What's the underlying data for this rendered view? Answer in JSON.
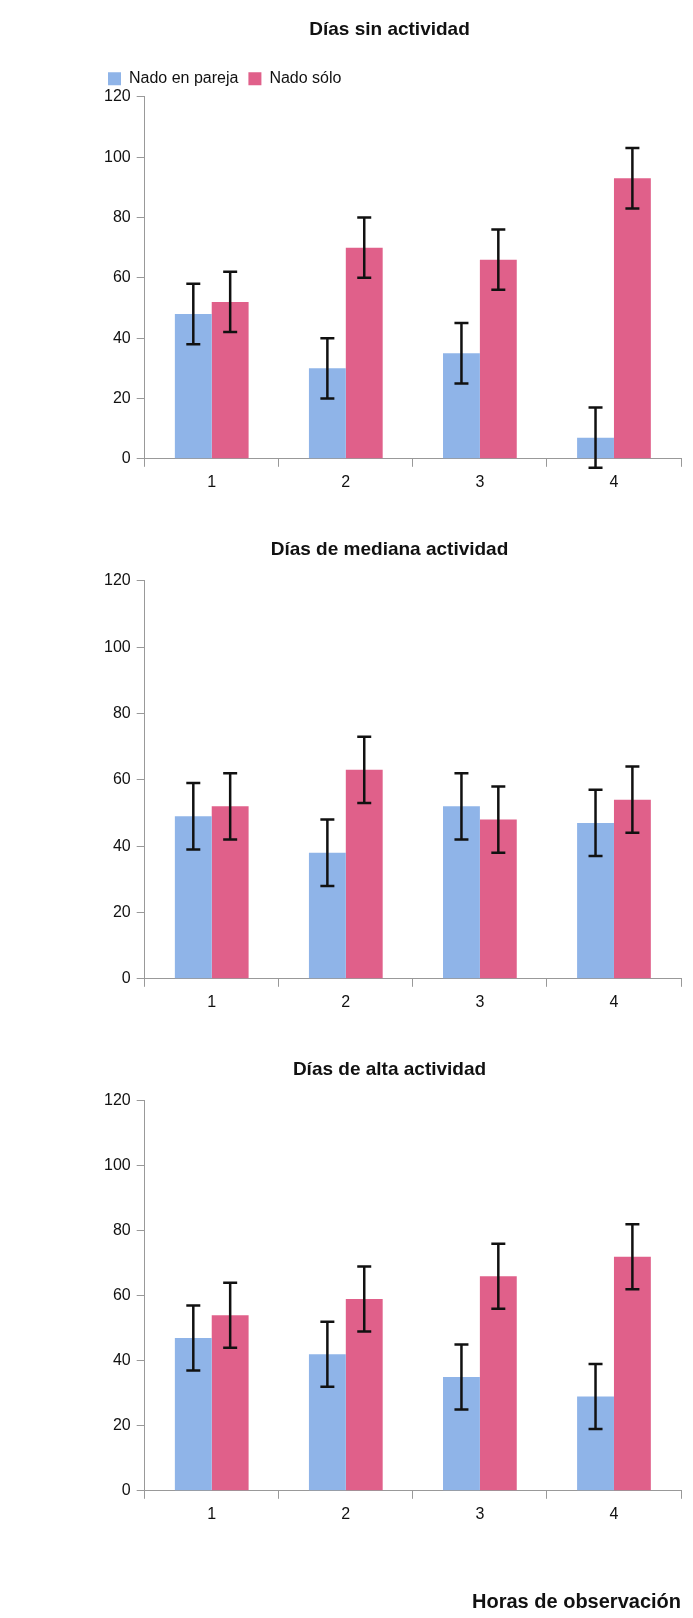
{
  "chart_data": [
    {
      "type": "bar",
      "title": "Días sin actividad",
      "categories": [
        "1",
        "2",
        "3",
        "4"
      ],
      "series": [
        {
          "name": "Nado en pareja",
          "color": "#8fb4e8",
          "values": [
            48,
            30,
            35,
            7
          ],
          "errors": [
            10,
            10,
            10,
            10
          ]
        },
        {
          "name": "Nado sólo",
          "color": "#e0608a",
          "values": [
            52,
            70,
            66,
            93
          ],
          "errors": [
            10,
            10,
            10,
            10
          ]
        }
      ],
      "ylim": [
        0,
        120
      ],
      "yticks": [
        0,
        20,
        40,
        60,
        80,
        100,
        120
      ],
      "grid": false,
      "legend": "top left"
    },
    {
      "type": "bar",
      "title": "Días de mediana actividad",
      "categories": [
        "1",
        "2",
        "3",
        "4"
      ],
      "series": [
        {
          "color": "#8fb4e8",
          "values": [
            49,
            38,
            52,
            47
          ],
          "errors": [
            10,
            10,
            10,
            10
          ]
        },
        {
          "color": "#e0608a",
          "values": [
            52,
            63,
            48,
            54
          ],
          "errors": [
            10,
            10,
            10,
            10
          ]
        }
      ],
      "ylim": [
        0,
        120
      ],
      "yticks": [
        0,
        20,
        40,
        60,
        80,
        100,
        120
      ],
      "grid": false
    },
    {
      "type": "bar",
      "title": "Días de alta actividad",
      "xlabel": "Horas de observación",
      "categories": [
        "1",
        "2",
        "3",
        "4"
      ],
      "series": [
        {
          "color": "#8fb4e8",
          "values": [
            47,
            42,
            35,
            29
          ],
          "errors": [
            10,
            10,
            10,
            10
          ]
        },
        {
          "color": "#e0608a",
          "values": [
            54,
            59,
            66,
            72
          ],
          "errors": [
            10,
            10,
            10,
            10
          ]
        }
      ],
      "ylim": [
        0,
        120
      ],
      "yticks": [
        0,
        20,
        40,
        60,
        80,
        100,
        120
      ],
      "grid": false
    }
  ]
}
